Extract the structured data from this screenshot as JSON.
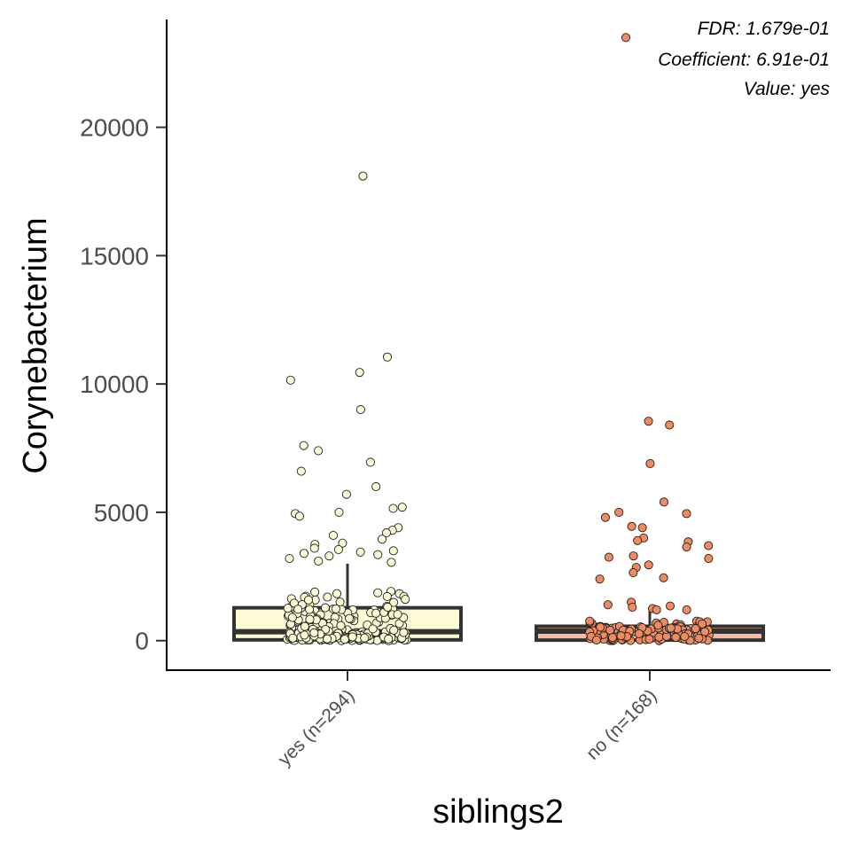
{
  "chart_data": {
    "type": "box",
    "xlabel": "siblings2",
    "ylabel": "Corynebacterium",
    "ylim": [
      -1150,
      24200
    ],
    "yticks": [
      0,
      5000,
      10000,
      15000,
      20000
    ],
    "ytick_labels": [
      "0",
      "5000",
      "10000",
      "15000",
      "20000"
    ],
    "categories": [
      "yes (n=294)",
      "no (n=168)"
    ],
    "annotations": [
      "FDR: 1.679e-01",
      "Coefficient: 6.91e-01",
      "Value: yes"
    ],
    "grid": false,
    "legend": "none",
    "colors": {
      "yes": "#fdfbd6",
      "no": "#f08a60",
      "no_box": "#fcb9a0",
      "box_edge": "#333333",
      "axis": "#000000"
    },
    "boxes": [
      {
        "category": "yes (n=294)",
        "q1": 30,
        "median": 350,
        "q3": 1280,
        "whisker_low": 0,
        "whisker_high": 3000
      },
      {
        "category": "no (n=168)",
        "q1": 20,
        "median": 370,
        "q3": 560,
        "whisker_low": 0,
        "whisker_high": 1150
      }
    ],
    "series": [
      {
        "category": "yes (n=294)",
        "outliers": [
          18100,
          11050,
          10450,
          10150,
          9000,
          7600,
          7400,
          6950,
          6600,
          6000,
          5700,
          5200,
          5150,
          5000,
          4950,
          4850,
          4400,
          4300,
          4200,
          4100,
          3950,
          3800,
          3750,
          3600,
          3550,
          3500,
          3450,
          3400,
          3350,
          3300,
          3200,
          3100,
          3050
        ]
      },
      {
        "category": "no (n=168)",
        "outliers": [
          23500,
          8550,
          8400,
          6900,
          5400,
          5000,
          4950,
          4800,
          4450,
          4400,
          4000,
          3900,
          3850,
          3700,
          3650,
          3300,
          3250,
          3200,
          2950,
          2850,
          2650,
          2450,
          2400,
          1500,
          1400,
          1350,
          1300,
          1250,
          1200,
          1200
        ]
      }
    ]
  }
}
